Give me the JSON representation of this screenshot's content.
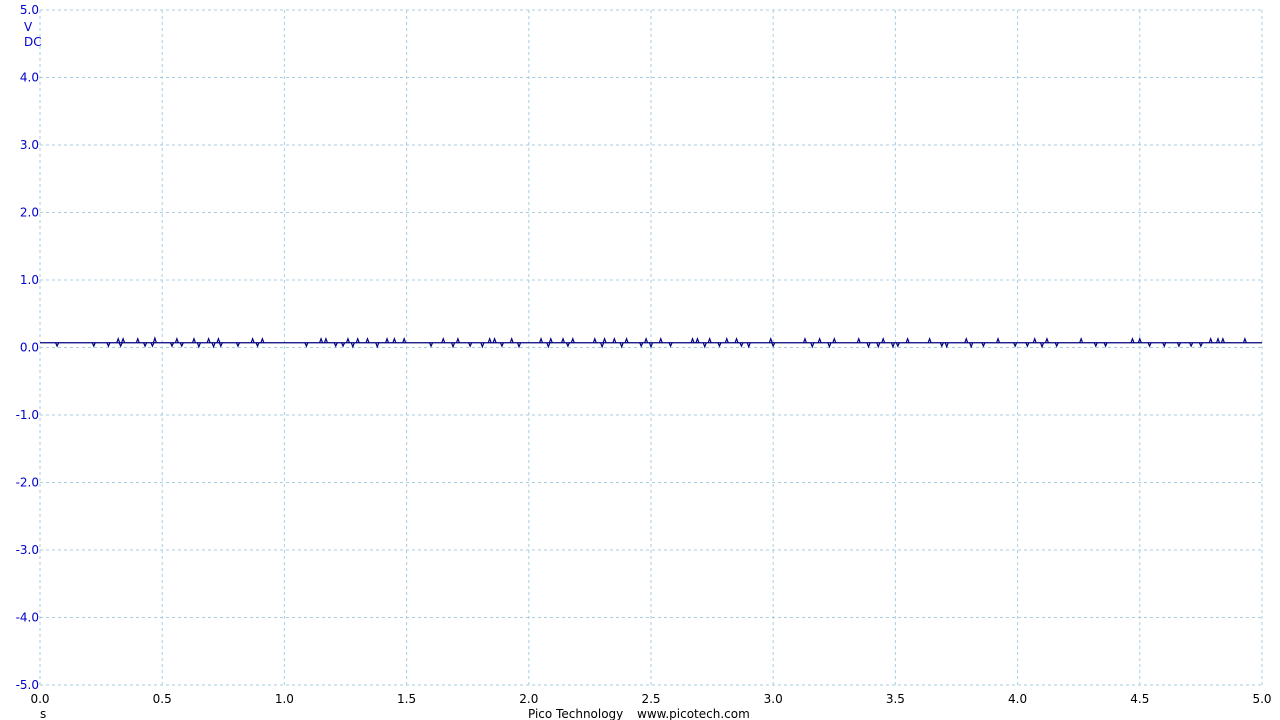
{
  "chart_data": {
    "type": "line",
    "xlabel": "s",
    "ylabel": "V",
    "coupling": "DC",
    "xlim": [
      0.0,
      5.0
    ],
    "ylim": [
      -5.0,
      5.0
    ],
    "x_ticks": [
      "0.0",
      "0.5",
      "1.0",
      "1.5",
      "2.0",
      "2.5",
      "3.0",
      "3.5",
      "4.0",
      "4.5",
      "5.0"
    ],
    "y_ticks": [
      "5.0",
      "4.0",
      "3.0",
      "2.0",
      "1.0",
      "0.0",
      "-1.0",
      "-2.0",
      "-3.0",
      "-4.0",
      "-5.0"
    ],
    "grid": true,
    "series": [
      {
        "color": "#00007f",
        "baseline": 0.07,
        "x": [
          0.07,
          0.22,
          0.28,
          0.32,
          0.33,
          0.34,
          0.4,
          0.43,
          0.46,
          0.47,
          0.54,
          0.56,
          0.58,
          0.63,
          0.65,
          0.69,
          0.71,
          0.73,
          0.74,
          0.81,
          0.87,
          0.89,
          0.91,
          1.09,
          1.15,
          1.17,
          1.21,
          1.24,
          1.26,
          1.28,
          1.3,
          1.34,
          1.38,
          1.42,
          1.45,
          1.49,
          1.6,
          1.65,
          1.69,
          1.71,
          1.76,
          1.81,
          1.84,
          1.86,
          1.89,
          1.93,
          1.96,
          2.05,
          2.08,
          2.09,
          2.14,
          2.16,
          2.18,
          2.27,
          2.3,
          2.31,
          2.35,
          2.38,
          2.4,
          2.46,
          2.48,
          2.5,
          2.54,
          2.58,
          2.67,
          2.69,
          2.72,
          2.74,
          2.78,
          2.81,
          2.85,
          2.87,
          2.9,
          2.99,
          3.0,
          3.13,
          3.16,
          3.19,
          3.23,
          3.25,
          3.35,
          3.39,
          3.43,
          3.45,
          3.49,
          3.51,
          3.55,
          3.64,
          3.69,
          3.71,
          3.79,
          3.81,
          3.86,
          3.92,
          3.99,
          4.04,
          4.07,
          4.1,
          4.12,
          4.16,
          4.26,
          4.32,
          4.36,
          4.47,
          4.5,
          4.54,
          4.6,
          4.66,
          4.71,
          4.75,
          4.79,
          4.82,
          4.84,
          4.93
        ],
        "spikes": [
          -0.05,
          -0.05,
          -0.05,
          0.06,
          -0.05,
          0.06,
          0.06,
          -0.05,
          -0.05,
          0.07,
          -0.05,
          0.06,
          -0.05,
          0.06,
          -0.06,
          0.06,
          -0.06,
          0.06,
          -0.05,
          -0.05,
          0.06,
          -0.05,
          0.06,
          -0.05,
          0.06,
          0.06,
          -0.05,
          -0.05,
          0.06,
          -0.06,
          0.06,
          0.06,
          -0.06,
          0.06,
          0.06,
          0.06,
          -0.05,
          0.06,
          -0.06,
          0.06,
          -0.05,
          -0.06,
          0.06,
          0.06,
          -0.05,
          0.06,
          -0.06,
          0.06,
          -0.06,
          0.06,
          0.06,
          -0.05,
          0.06,
          0.06,
          -0.06,
          0.06,
          0.06,
          -0.06,
          0.06,
          -0.05,
          0.06,
          -0.06,
          0.06,
          -0.05,
          0.06,
          0.06,
          -0.06,
          0.06,
          -0.05,
          0.06,
          0.06,
          -0.05,
          -0.06,
          0.06,
          -0.05,
          0.06,
          -0.06,
          0.06,
          -0.06,
          0.06,
          0.06,
          -0.06,
          -0.06,
          0.06,
          -0.06,
          -0.05,
          0.06,
          0.06,
          -0.05,
          -0.06,
          0.06,
          -0.06,
          -0.05,
          0.06,
          -0.05,
          -0.05,
          0.06,
          -0.06,
          0.06,
          -0.05,
          0.06,
          -0.05,
          -0.05,
          0.06,
          0.06,
          -0.05,
          -0.05,
          -0.05,
          -0.05,
          -0.05,
          0.06,
          0.06,
          0.06,
          0.06
        ]
      }
    ]
  },
  "footer": {
    "brand": "Pico Technology",
    "url": "www.picotech.com"
  },
  "colors": {
    "grid": "#a8cfe0",
    "y_axis_text": "#0000cc",
    "trace": "#00007f"
  }
}
